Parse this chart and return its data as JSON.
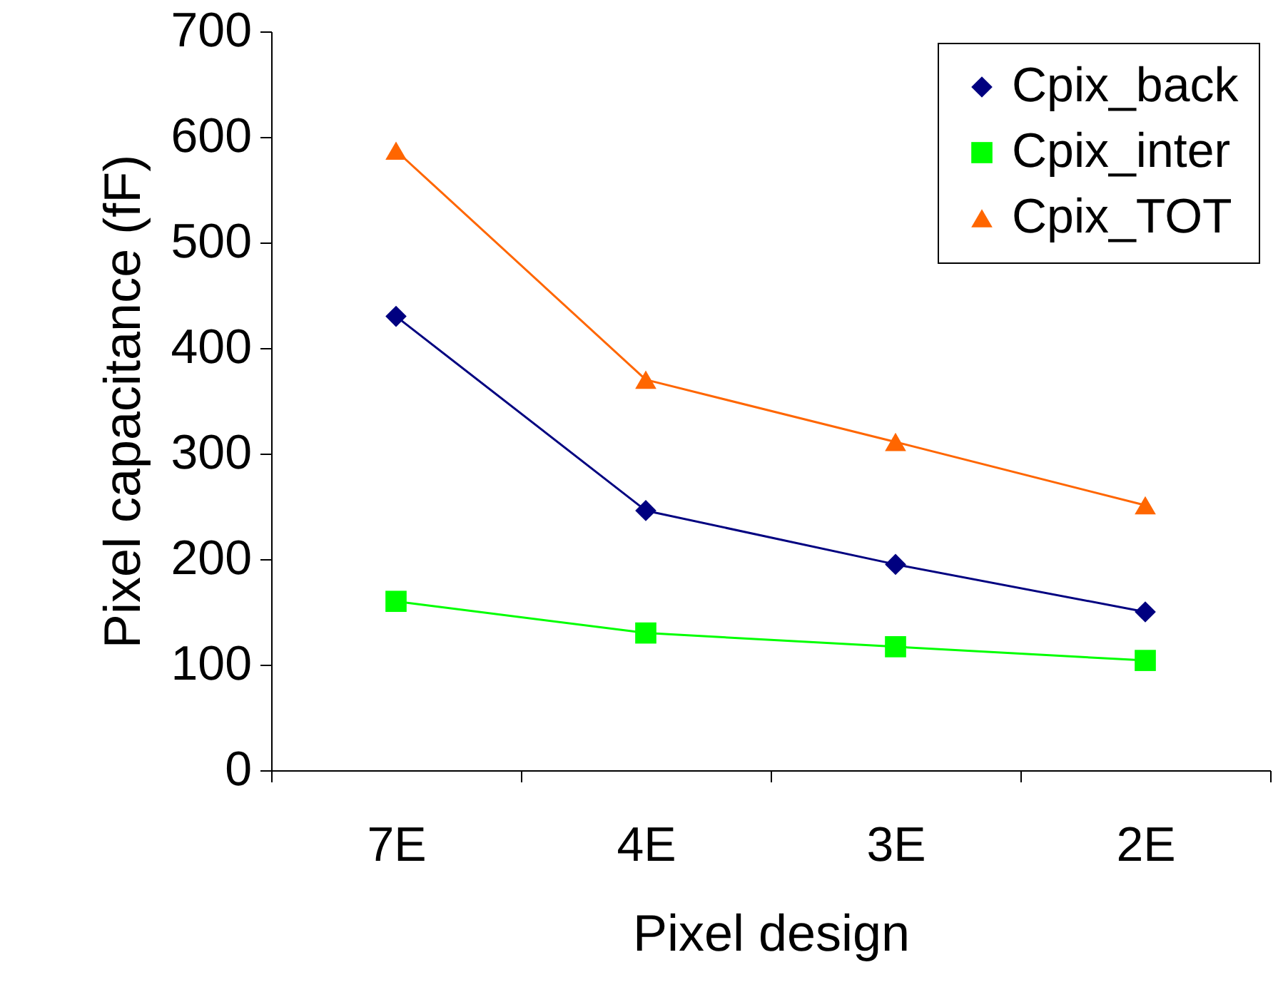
{
  "chart_data": {
    "type": "line",
    "xlabel": "Pixel design",
    "ylabel": "Pixel capacitance (fF)",
    "categories": [
      "7E",
      "4E",
      "3E",
      "2E"
    ],
    "series": [
      {
        "name": "Cpix_back",
        "color": "#000080",
        "marker": "diamond",
        "values": [
          430,
          246,
          195,
          150
        ]
      },
      {
        "name": "Cpix_inter",
        "color": "#00ff00",
        "marker": "square",
        "values": [
          160,
          130,
          117,
          104
        ]
      },
      {
        "name": "Cpix_TOT",
        "color": "#ff6600",
        "marker": "triangle",
        "values": [
          587,
          370,
          311,
          251
        ]
      }
    ],
    "ylim": [
      0,
      700
    ],
    "yticks": [
      0,
      100,
      200,
      300,
      400,
      500,
      600,
      700
    ],
    "grid": false,
    "legend": "top right",
    "line_style": "solid"
  }
}
